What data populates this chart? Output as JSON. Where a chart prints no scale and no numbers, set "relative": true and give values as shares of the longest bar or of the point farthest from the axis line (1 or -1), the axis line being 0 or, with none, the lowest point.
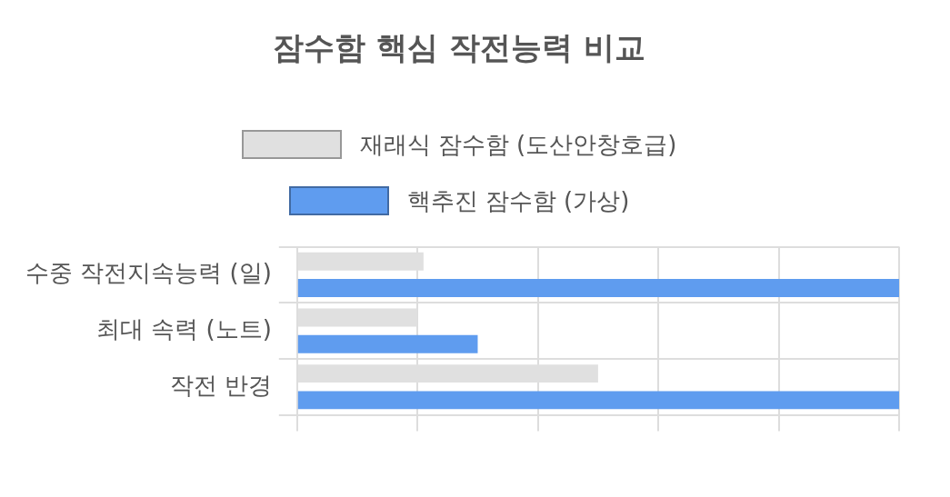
{
  "chart_data": {
    "type": "bar",
    "orientation": "horizontal",
    "relative": true,
    "title": "잠수함 핵심 작전능력 비교",
    "legend": "top",
    "grid": true,
    "categories": [
      "수중 작전지속능력 (일)",
      "최대 속력 (노트)",
      "작전 반경"
    ],
    "series": [
      {
        "name": "재래식 잠수함 (도산안창호급)",
        "color": "#e0e0e0",
        "values": [
          0.21,
          0.2,
          0.5
        ]
      },
      {
        "name": "핵추진 잠수함 (가상)",
        "color": "#5f9cef",
        "values": [
          1,
          0.3,
          1
        ]
      }
    ]
  }
}
